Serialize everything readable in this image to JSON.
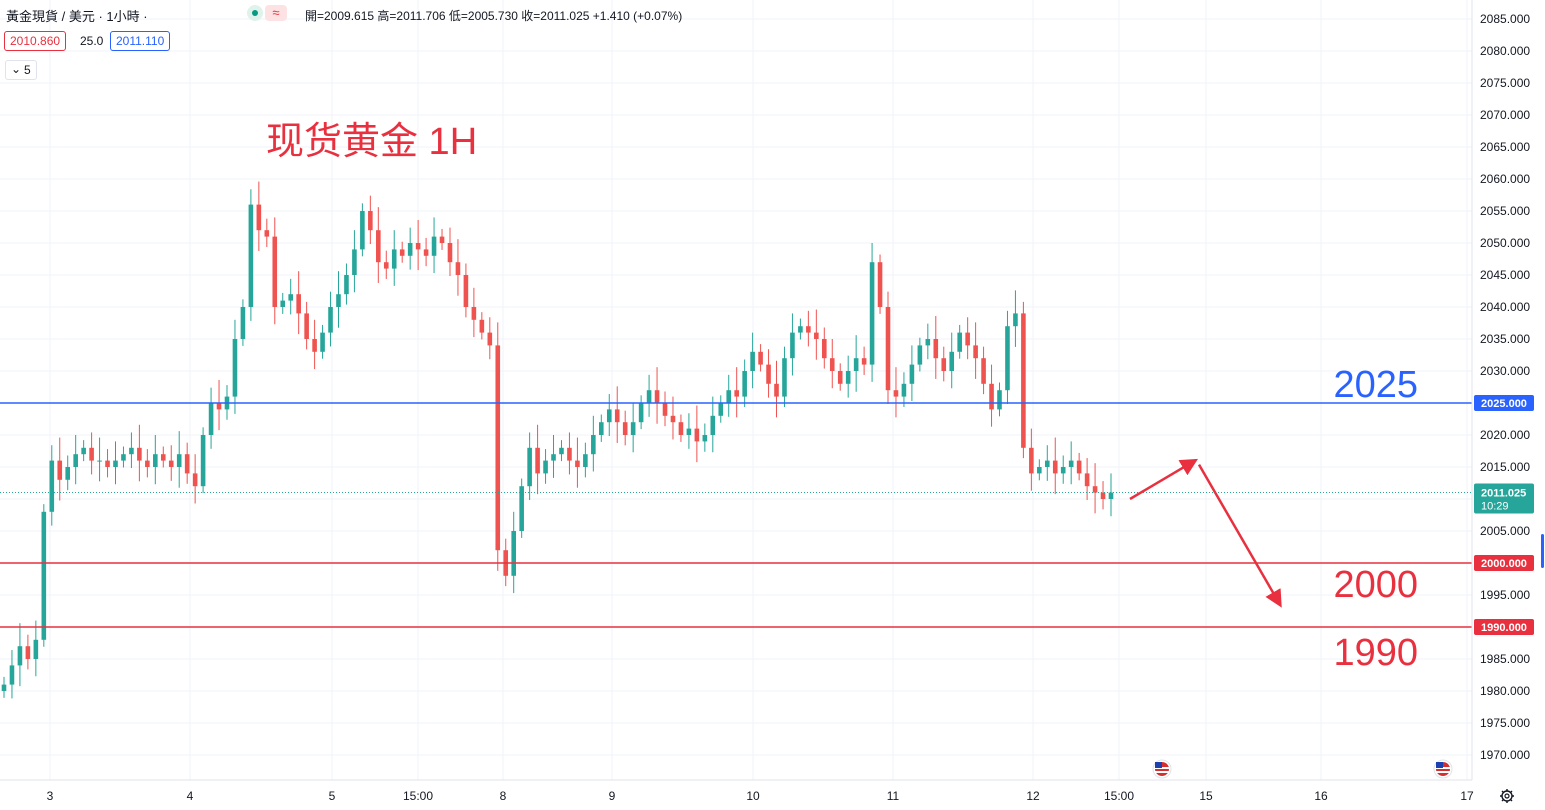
{
  "header": {
    "symbol": "黃金現貨 / 美元 · 1小時 ·",
    "ohlc": "開=2009.615 高=2011.706 低=2005.730 收=2011.025 +1.410 (+0.07%)",
    "bid": "2010.860",
    "spread": "25.0",
    "ask": "2011.110",
    "indicator_count": "5",
    "approx_symbol": "≈"
  },
  "colors": {
    "up": "#26a69a",
    "down": "#ef5350",
    "support": "#e8303f",
    "resistance": "#2962ff",
    "annotation": "#e8303f"
  },
  "chart_data": {
    "type": "candlestick",
    "title": "现货黄金 1H",
    "ylim": [
      1968,
      2088
    ],
    "y_ticks": [
      1970,
      1975,
      1980,
      1985,
      1990,
      1995,
      2000,
      2005,
      2010,
      2015,
      2020,
      2025,
      2030,
      2035,
      2040,
      2045,
      2050,
      2055,
      2060,
      2065,
      2070,
      2075,
      2080,
      2085
    ],
    "x_ticks": [
      "3",
      "4",
      "5",
      "15:00",
      "8",
      "9",
      "10",
      "11",
      "12",
      "15:00",
      "15",
      "16",
      "17"
    ],
    "last_price": "2011.025",
    "countdown": "10:29",
    "levels": [
      {
        "label": "2025",
        "price": 2025,
        "tag": "2025.000",
        "color": "#2962ff"
      },
      {
        "label": "2000",
        "price": 2000,
        "tag": "2000.000",
        "color": "#e8303f"
      },
      {
        "label": "1990",
        "price": 1990,
        "tag": "1990.000",
        "color": "#e8303f"
      }
    ],
    "forecast_path": [
      2010,
      2016,
      1993.5
    ],
    "closes": [
      1981,
      1984,
      1987,
      1985,
      1988,
      2008,
      2016,
      2013,
      2015,
      2017,
      2018,
      2016,
      2016,
      2015,
      2016,
      2017,
      2018,
      2016,
      2015,
      2017,
      2016,
      2015,
      2017,
      2014,
      2012,
      2020,
      2025,
      2024,
      2026,
      2035,
      2040,
      2056,
      2052,
      2051,
      2040,
      2041,
      2042,
      2039,
      2035,
      2033,
      2036,
      2040,
      2042,
      2045,
      2049,
      2055,
      2052,
      2047,
      2046,
      2049,
      2048,
      2050,
      2049,
      2048,
      2051,
      2050,
      2047,
      2045,
      2040,
      2038,
      2036,
      2034,
      2002,
      1998,
      2005,
      2012,
      2018,
      2014,
      2016,
      2017,
      2018,
      2016,
      2015,
      2017,
      2020,
      2022,
      2024,
      2022,
      2020,
      2022,
      2025,
      2027,
      2025,
      2023,
      2022,
      2020,
      2021,
      2019,
      2020,
      2023,
      2025,
      2027,
      2026,
      2030,
      2033,
      2031,
      2028,
      2026,
      2032,
      2036,
      2037,
      2036,
      2035,
      2032,
      2030,
      2028,
      2030,
      2032,
      2031,
      2047,
      2040,
      2027,
      2026,
      2028,
      2031,
      2034,
      2035,
      2032,
      2030,
      2033,
      2036,
      2034,
      2032,
      2028,
      2024,
      2027,
      2037,
      2039,
      2018,
      2014,
      2015,
      2016,
      2014,
      2015,
      2016,
      2014,
      2012,
      2011,
      2010,
      2011
    ]
  }
}
